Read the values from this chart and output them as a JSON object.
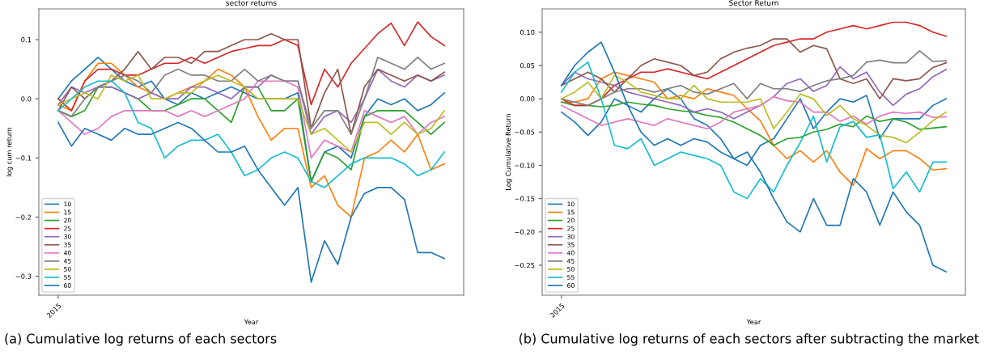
{
  "chart_data": [
    {
      "type": "line",
      "title": "sector returns",
      "xlabel": "Year",
      "ylabel": "log cum return",
      "ylim": [
        -0.332,
        0.152
      ],
      "yticks": [
        {
          "value": -0.3,
          "label": "−0.3"
        },
        {
          "value": -0.2,
          "label": "−0.2"
        },
        {
          "value": -0.1,
          "label": "−0.1"
        },
        {
          "value": 0,
          "label": "0.0"
        },
        {
          "value": 0.1,
          "label": "0.1"
        }
      ],
      "legend": "bottom left",
      "grid": false,
      "annotations": [
        "(a) Cumulative log returns of each sectors"
      ],
      "categories": [
        "2015",
        null,
        null,
        null,
        null,
        null,
        null,
        null,
        null,
        null,
        null,
        null,
        null,
        null,
        null,
        null,
        null,
        null,
        null,
        null,
        null,
        null,
        null,
        null,
        null,
        null,
        null,
        null,
        null,
        null
      ],
      "series": [
        {
          "name": "10",
          "color": "#1f77b4",
          "values": [
            0.0,
            0.03,
            0.05,
            0.07,
            0.05,
            0.03,
            0.02,
            0.03,
            0.0,
            -0.01,
            0.01,
            0.0,
            0.01,
            0.02,
            0.01,
            0.0,
            0.0,
            0.0,
            0.01,
            -0.14,
            -0.09,
            -0.08,
            -0.1,
            -0.03,
            0.0,
            -0.01,
            0.0,
            -0.02,
            -0.01,
            0.01
          ]
        },
        {
          "name": "15",
          "color": "#ff7f0e",
          "values": [
            -0.01,
            -0.02,
            0.03,
            0.06,
            0.06,
            0.04,
            0.02,
            0.01,
            0.0,
            0.01,
            0.02,
            0.03,
            0.05,
            0.04,
            0.02,
            -0.03,
            -0.07,
            -0.05,
            -0.05,
            -0.15,
            -0.13,
            -0.18,
            -0.2,
            -0.1,
            -0.09,
            -0.07,
            -0.09,
            -0.06,
            -0.12,
            -0.11
          ]
        },
        {
          "name": "20",
          "color": "#2ca02c",
          "values": [
            -0.02,
            -0.03,
            -0.02,
            0.02,
            0.02,
            0.01,
            0.0,
            -0.02,
            -0.02,
            -0.01,
            0.0,
            0.0,
            -0.02,
            -0.04,
            0.02,
            0.02,
            -0.02,
            -0.02,
            0.0,
            -0.14,
            -0.09,
            -0.1,
            -0.12,
            -0.03,
            -0.02,
            -0.02,
            -0.02,
            -0.04,
            -0.06,
            -0.04
          ]
        },
        {
          "name": "25",
          "color": "#d62728",
          "values": [
            0.0,
            -0.02,
            0.03,
            0.05,
            0.05,
            0.04,
            0.04,
            0.05,
            0.06,
            0.06,
            0.07,
            0.06,
            0.07,
            0.08,
            0.085,
            0.09,
            0.09,
            0.1,
            0.09,
            -0.01,
            0.05,
            0.02,
            0.06,
            0.085,
            0.11,
            0.128,
            0.09,
            0.13,
            0.105,
            0.09
          ]
        },
        {
          "name": "30",
          "color": "#9467bd",
          "values": [
            -0.01,
            0.02,
            0.01,
            0.02,
            0.02,
            0.01,
            0.0,
            0.01,
            0.0,
            0.0,
            0.02,
            0.02,
            0.01,
            0.0,
            0.02,
            0.02,
            0.04,
            0.03,
            0.03,
            -0.06,
            -0.03,
            -0.02,
            -0.04,
            0.0,
            0.05,
            0.03,
            0.02,
            0.04,
            0.03,
            0.04
          ]
        },
        {
          "name": "35",
          "color": "#8c564b",
          "values": [
            -0.02,
            0.02,
            0.0,
            0.02,
            0.03,
            0.05,
            0.08,
            0.05,
            0.07,
            0.07,
            0.06,
            0.08,
            0.08,
            0.09,
            0.1,
            0.1,
            0.11,
            0.1,
            0.1,
            -0.05,
            0.01,
            0.05,
            -0.06,
            0.02,
            0.05,
            0.04,
            0.03,
            0.04,
            0.03,
            0.045
          ]
        },
        {
          "name": "40",
          "color": "#e377c2",
          "values": [
            -0.02,
            -0.04,
            -0.06,
            -0.05,
            -0.03,
            -0.02,
            -0.02,
            -0.02,
            -0.02,
            -0.03,
            -0.02,
            -0.03,
            -0.02,
            -0.01,
            0.0,
            0.03,
            0.03,
            0.03,
            0.02,
            -0.1,
            -0.07,
            -0.08,
            -0.09,
            -0.02,
            -0.03,
            -0.04,
            -0.03,
            -0.06,
            -0.04,
            -0.03
          ]
        },
        {
          "name": "45",
          "color": "#7f7f7f",
          "values": [
            -0.02,
            -0.03,
            0.0,
            0.02,
            0.03,
            0.04,
            0.03,
            0.01,
            0.04,
            0.05,
            0.04,
            0.04,
            0.03,
            0.03,
            0.05,
            0.03,
            0.04,
            0.03,
            0.03,
            -0.05,
            -0.02,
            -0.02,
            -0.06,
            0.0,
            0.07,
            0.06,
            0.05,
            0.07,
            0.05,
            0.06
          ]
        },
        {
          "name": "50",
          "color": "#bcbd22",
          "values": [
            -0.01,
            0.0,
            0.01,
            0.0,
            0.04,
            0.03,
            0.04,
            0.0,
            0.0,
            0.01,
            0.01,
            0.03,
            0.04,
            0.03,
            0.02,
            0.0,
            0.0,
            0.0,
            0.0,
            -0.06,
            -0.05,
            -0.07,
            -0.09,
            -0.04,
            -0.04,
            -0.06,
            -0.04,
            -0.06,
            -0.05,
            -0.02
          ]
        },
        {
          "name": "55",
          "color": "#17becf",
          "values": [
            -0.02,
            0.0,
            0.02,
            0.03,
            0.03,
            0.01,
            -0.04,
            -0.05,
            -0.1,
            -0.08,
            -0.07,
            -0.07,
            -0.06,
            -0.09,
            -0.13,
            -0.12,
            -0.1,
            -0.09,
            -0.1,
            -0.14,
            -0.15,
            -0.13,
            -0.11,
            -0.1,
            -0.1,
            -0.1,
            -0.11,
            -0.13,
            -0.12,
            -0.09
          ]
        },
        {
          "name": "60",
          "color": "#1f77b4",
          "values": [
            -0.04,
            -0.08,
            -0.05,
            -0.06,
            -0.07,
            -0.05,
            -0.06,
            -0.06,
            -0.05,
            -0.04,
            -0.05,
            -0.07,
            -0.09,
            -0.09,
            -0.08,
            -0.12,
            -0.15,
            -0.18,
            -0.15,
            -0.31,
            -0.24,
            -0.28,
            -0.2,
            -0.16,
            -0.15,
            -0.15,
            -0.17,
            -0.26,
            -0.26,
            -0.27
          ]
        }
      ]
    },
    {
      "type": "line",
      "title": "Sector Return",
      "xlabel": "Year",
      "ylabel": "Log Cumulative Return",
      "ylim": [
        -0.295,
        0.135
      ],
      "yticks": [
        {
          "value": -0.25,
          "label": "−0.25"
        },
        {
          "value": -0.2,
          "label": "−0.20"
        },
        {
          "value": -0.15,
          "label": "−0.15"
        },
        {
          "value": -0.1,
          "label": "−0.10"
        },
        {
          "value": -0.05,
          "label": "−0.05"
        },
        {
          "value": 0,
          "label": "0.00"
        },
        {
          "value": 0.05,
          "label": "0.05"
        },
        {
          "value": 0.1,
          "label": "0.10"
        }
      ],
      "legend": "bottom left",
      "grid": false,
      "annotations": [
        "(b) Cumulative log returns of each sectors after subtracting the market"
      ],
      "categories": [
        "2015",
        null,
        null,
        null,
        null,
        null,
        null,
        null,
        null,
        null,
        null,
        null,
        null,
        null,
        null,
        null,
        null,
        null,
        null,
        null,
        null,
        null,
        null,
        null,
        null,
        null,
        null,
        null,
        null,
        null
      ],
      "series": [
        {
          "name": "10",
          "color": "#1f77b4",
          "values": [
            -0.02,
            -0.035,
            -0.055,
            -0.035,
            0.0,
            -0.01,
            -0.02,
            0.0,
            0.015,
            0.0,
            -0.03,
            -0.04,
            -0.06,
            -0.09,
            -0.1,
            -0.07,
            -0.06,
            -0.03,
            0.0,
            -0.045,
            -0.02,
            0.0,
            -0.005,
            0.005,
            -0.06,
            -0.03,
            -0.03,
            -0.03,
            -0.01,
            0.0
          ]
        },
        {
          "name": "15",
          "color": "#ff7f0e",
          "values": [
            -0.005,
            -0.005,
            0.0,
            0.03,
            0.04,
            0.035,
            0.03,
            0.025,
            0.0,
            0.005,
            0.0,
            0.015,
            0.01,
            0.005,
            -0.015,
            -0.033,
            -0.07,
            -0.09,
            -0.078,
            -0.095,
            -0.078,
            -0.11,
            -0.13,
            -0.075,
            -0.09,
            -0.078,
            -0.078,
            -0.09,
            -0.107,
            -0.105
          ]
        },
        {
          "name": "20",
          "color": "#2ca02c",
          "values": [
            -0.005,
            -0.01,
            -0.01,
            -0.012,
            -0.01,
            -0.005,
            -0.008,
            -0.01,
            -0.015,
            -0.018,
            -0.02,
            -0.025,
            -0.028,
            -0.035,
            -0.045,
            -0.055,
            -0.07,
            -0.06,
            -0.058,
            -0.05,
            -0.046,
            -0.038,
            -0.042,
            -0.026,
            -0.034,
            -0.03,
            -0.035,
            -0.046,
            -0.044,
            -0.042
          ]
        },
        {
          "name": "25",
          "color": "#d62728",
          "values": [
            0.0,
            -0.01,
            -0.01,
            0.0,
            0.02,
            0.03,
            0.04,
            0.04,
            0.045,
            0.04,
            0.035,
            0.03,
            0.04,
            0.05,
            0.06,
            0.07,
            0.08,
            0.085,
            0.09,
            0.09,
            0.1,
            0.105,
            0.11,
            0.105,
            0.11,
            0.115,
            0.115,
            0.11,
            0.1,
            0.094
          ]
        },
        {
          "name": "30",
          "color": "#9467bd",
          "values": [
            0.02,
            0.04,
            0.03,
            0.025,
            0.02,
            0.01,
            0.005,
            0.0,
            -0.005,
            -0.01,
            -0.02,
            -0.015,
            -0.02,
            -0.03,
            -0.02,
            -0.01,
            0.003,
            0.023,
            0.03,
            0.011,
            0.02,
            0.048,
            0.03,
            0.04,
            0.01,
            -0.01,
            0.007,
            0.015,
            0.033,
            0.044
          ]
        },
        {
          "name": "35",
          "color": "#8c564b",
          "values": [
            0.02,
            0.03,
            0.04,
            0.03,
            0.01,
            0.03,
            0.05,
            0.06,
            0.055,
            0.05,
            0.035,
            0.04,
            0.06,
            0.07,
            0.076,
            0.08,
            0.09,
            0.09,
            0.07,
            0.08,
            0.075,
            0.03,
            0.023,
            0.03,
            0.0,
            0.03,
            0.027,
            0.03,
            0.047,
            0.054
          ]
        },
        {
          "name": "40",
          "color": "#e377c2",
          "values": [
            -0.01,
            -0.02,
            -0.03,
            -0.04,
            -0.035,
            -0.03,
            -0.035,
            -0.04,
            -0.03,
            -0.035,
            -0.04,
            -0.045,
            -0.035,
            -0.02,
            -0.015,
            -0.01,
            0.003,
            -0.003,
            -0.005,
            -0.02,
            -0.02,
            -0.034,
            -0.026,
            -0.038,
            -0.026,
            -0.02,
            -0.022,
            -0.02,
            -0.028,
            -0.027
          ]
        },
        {
          "name": "45",
          "color": "#7f7f7f",
          "values": [
            0.0,
            -0.005,
            -0.01,
            0.0,
            0.01,
            0.015,
            0.015,
            0.01,
            0.015,
            0.02,
            0.01,
            0.007,
            0.015,
            0.023,
            0.0,
            0.023,
            0.015,
            0.015,
            0.011,
            0.02,
            0.027,
            0.03,
            0.035,
            0.055,
            0.058,
            0.054,
            0.054,
            0.072,
            0.056,
            0.057
          ]
        },
        {
          "name": "50",
          "color": "#bcbd22",
          "values": [
            0.0,
            0.01,
            0.025,
            0.0,
            0.035,
            0.025,
            0.01,
            0.005,
            0.0,
            0.0,
            0.02,
            0.0,
            -0.005,
            -0.005,
            -0.005,
            0.0,
            -0.045,
            -0.02,
            0.007,
            0.0,
            -0.025,
            -0.01,
            -0.03,
            -0.04,
            -0.055,
            -0.058,
            -0.066,
            -0.05,
            -0.033,
            -0.02
          ]
        },
        {
          "name": "55",
          "color": "#17becf",
          "values": [
            0.01,
            0.04,
            0.055,
            0.0,
            -0.07,
            -0.075,
            -0.06,
            -0.1,
            -0.09,
            -0.08,
            -0.085,
            -0.09,
            -0.1,
            -0.14,
            -0.15,
            -0.12,
            -0.14,
            -0.1,
            -0.066,
            -0.026,
            -0.095,
            -0.042,
            -0.034,
            -0.058,
            -0.054,
            -0.135,
            -0.11,
            -0.14,
            -0.095,
            -0.095
          ]
        },
        {
          "name": "60",
          "color": "#1f77b4",
          "values": [
            0.02,
            0.05,
            0.07,
            0.085,
            0.04,
            -0.01,
            -0.05,
            -0.07,
            -0.06,
            -0.07,
            -0.06,
            -0.065,
            -0.08,
            -0.09,
            -0.08,
            -0.11,
            -0.15,
            -0.185,
            -0.2,
            -0.15,
            -0.19,
            -0.19,
            -0.12,
            -0.14,
            -0.19,
            -0.14,
            -0.17,
            -0.19,
            -0.25,
            -0.26
          ]
        }
      ]
    }
  ]
}
